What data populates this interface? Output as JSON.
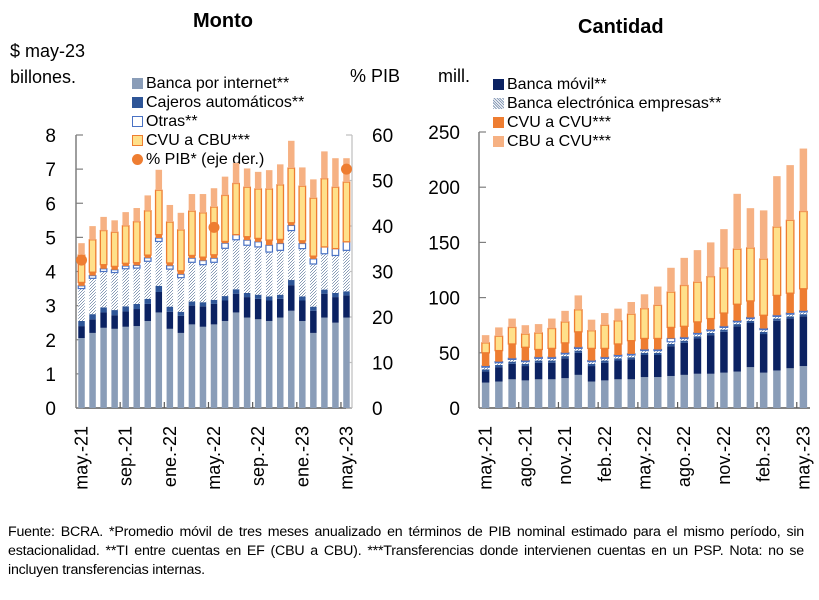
{
  "footnote": "Fuente: BCRA. *Promedio móvil de tres meses anualizado en términos de PIB nominal estimado para el mismo período, sin estacionalidad. **TI entre cuentas en EF (CBU a CBU). ***Transferencias donde intervienen cuentas en un PSP. Nota: no se incluyen transferencias internas.",
  "colors": {
    "banca_internet": "#8a9db8",
    "banca_movil": "#0b2262",
    "cajeros": "#2e5597",
    "banca_electronica": "#b9c2d3",
    "otras": "#ffffff",
    "otras_border": "#4a72c4",
    "cvu_cvu": "#ee7d31",
    "cvu_cbu": "#ffe08a",
    "cvu_cbu_border": "#ee7d31",
    "cbu_cvu": "#f6b183",
    "pib": "#ee7d31"
  },
  "chart_data": [
    {
      "type": "bar",
      "stacked": true,
      "title": "Monto",
      "ylabel": "$ may-23 billones.",
      "ylabel_right": "% PIB",
      "ylim": [
        0,
        8
      ],
      "ylim_right": [
        0,
        60
      ],
      "yticks": [
        "0",
        "1",
        "2",
        "3",
        "4",
        "5",
        "6",
        "7",
        "8"
      ],
      "yticks_right": [
        "0",
        "10",
        "20",
        "30",
        "40",
        "50",
        "60"
      ],
      "x": [
        "may.-21",
        "jun.-21",
        "jul.-21",
        "ago.-21",
        "sep.-21",
        "oct.-21",
        "nov.-21",
        "dic.-21",
        "ene.-22",
        "feb.-22",
        "mar.-22",
        "abr.-22",
        "may.-22",
        "jun.-22",
        "jul.-22",
        "ago.-22",
        "sep.-22",
        "oct.-22",
        "nov.-22",
        "dic.-22",
        "ene.-23",
        "feb.-23",
        "mar.-23",
        "abr.-23",
        "may.-23"
      ],
      "xtick_labels": [
        "may.-21",
        "sep.-21",
        "ene.-22",
        "may.-22",
        "sep.-22",
        "ene.-23",
        "may.-23"
      ],
      "legend": [
        {
          "key": "banca_internet",
          "label": "Banca por internet**",
          "style": "square"
        },
        {
          "key": "cajeros",
          "label": "Cajeros automáticos**",
          "style": "square"
        },
        {
          "key": "otras",
          "label": "Otras**",
          "style": "outline"
        },
        {
          "key": "cvu_cbu",
          "label": "CVU a CBU***",
          "style": "bordered"
        },
        {
          "key": "pib",
          "label": "% PIB* (eje der.)",
          "style": "dot"
        }
      ],
      "series": [
        {
          "name": "Banca por internet**",
          "key": "banca_internet",
          "values": [
            2.05,
            2.2,
            2.35,
            2.32,
            2.38,
            2.4,
            2.55,
            2.8,
            2.32,
            2.2,
            2.45,
            2.38,
            2.45,
            2.55,
            2.8,
            2.65,
            2.6,
            2.55,
            2.65,
            2.85,
            2.55,
            2.2,
            2.65,
            2.5,
            2.65
          ]
        },
        {
          "name": "Banca móvil**",
          "key": "banca_movil",
          "values": [
            0.35,
            0.4,
            0.45,
            0.4,
            0.45,
            0.5,
            0.5,
            0.6,
            0.5,
            0.5,
            0.55,
            0.6,
            0.6,
            0.6,
            0.55,
            0.6,
            0.6,
            0.6,
            0.55,
            0.75,
            0.6,
            0.65,
            0.7,
            0.75,
            0.65
          ]
        },
        {
          "name": "Cajeros automáticos**",
          "key": "cajeros",
          "values": [
            0.15,
            0.15,
            0.15,
            0.15,
            0.15,
            0.15,
            0.15,
            0.18,
            0.15,
            0.12,
            0.12,
            0.12,
            0.12,
            0.13,
            0.13,
            0.12,
            0.12,
            0.12,
            0.12,
            0.15,
            0.12,
            0.12,
            0.12,
            0.12,
            0.12
          ]
        },
        {
          "name": "Banca electrónica empresas**",
          "key": "banca_electronica",
          "values": [
            0.95,
            1.05,
            1.05,
            1.1,
            1.1,
            1.05,
            1.1,
            1.3,
            1.1,
            1.0,
            1.15,
            1.1,
            1.1,
            1.4,
            1.45,
            1.4,
            1.4,
            1.3,
            1.3,
            1.45,
            1.4,
            1.25,
            1.05,
            1.1,
            1.2
          ]
        },
        {
          "name": "Otras**",
          "key": "otras",
          "values": [
            0.08,
            0.08,
            0.08,
            0.08,
            0.08,
            0.08,
            0.1,
            0.1,
            0.1,
            0.1,
            0.12,
            0.12,
            0.12,
            0.15,
            0.15,
            0.15,
            0.15,
            0.2,
            0.2,
            0.15,
            0.15,
            0.15,
            0.2,
            0.2,
            0.25
          ]
        },
        {
          "name": "CVU a CVU***",
          "key": "cvu_cvu",
          "values": [
            0.1,
            0.1,
            0.12,
            0.1,
            0.08,
            0.08,
            0.08,
            0.1,
            0.08,
            0.1,
            0.08,
            0.1,
            0.1,
            0.05,
            0.0,
            0.1,
            0.1,
            0.15,
            0.12,
            0.08,
            0.08,
            0.08,
            0.0,
            0.0,
            0.0
          ]
        },
        {
          "name": "CVU a CBU***",
          "key": "cvu_cbu",
          "values": [
            0.8,
            0.95,
            1.0,
            1.0,
            1.1,
            1.2,
            1.3,
            1.3,
            1.2,
            1.2,
            1.3,
            1.3,
            1.4,
            1.35,
            1.5,
            1.45,
            1.45,
            1.5,
            1.6,
            1.6,
            1.6,
            1.7,
            2.0,
            1.8,
            1.75
          ]
        },
        {
          "name": "CBU a CVU***",
          "key": "cbu_cvu",
          "values": [
            0.35,
            0.4,
            0.4,
            0.35,
            0.4,
            0.4,
            0.45,
            0.6,
            0.5,
            0.5,
            0.5,
            0.55,
            0.55,
            0.55,
            0.6,
            0.55,
            0.5,
            0.55,
            0.6,
            0.8,
            0.55,
            0.55,
            0.8,
            0.85,
            0.7
          ]
        }
      ],
      "pib_points": [
        {
          "x": "may.-21",
          "value": 32.5
        },
        {
          "x": "may.-22",
          "value": 39.7
        },
        {
          "x": "may.-23",
          "value": 52.5
        }
      ]
    },
    {
      "type": "bar",
      "stacked": true,
      "title": "Cantidad",
      "ylabel": "mill.",
      "ylim": [
        0,
        250
      ],
      "yticks": [
        "0",
        "50",
        "100",
        "150",
        "200",
        "250"
      ],
      "x": [
        "may.-21",
        "jun.-21",
        "jul.-21",
        "ago.-21",
        "sep.-21",
        "oct.-21",
        "nov.-21",
        "dic.-21",
        "ene.-22",
        "feb.-22",
        "mar.-22",
        "abr.-22",
        "may.-22",
        "jun.-22",
        "jul.-22",
        "ago.-22",
        "sep.-22",
        "oct.-22",
        "nov.-22",
        "dic.-22",
        "ene.-23",
        "feb.-23",
        "mar.-23",
        "abr.-23",
        "may.-23"
      ],
      "xtick_labels": [
        "may.-21",
        "ago.-21",
        "nov.-21",
        "feb.-22",
        "may.-22",
        "ago.-22",
        "nov.-22",
        "feb.-23",
        "may.-23"
      ],
      "legend": [
        {
          "key": "banca_movil",
          "label": "Banca móvil**",
          "style": "square"
        },
        {
          "key": "banca_electronica",
          "label": "Banca electrónica empresas**",
          "style": "hatch"
        },
        {
          "key": "cvu_cvu",
          "label": "CVU a CVU***",
          "style": "square"
        },
        {
          "key": "cbu_cvu",
          "label": "CBU a CVU***",
          "style": "square"
        }
      ],
      "series": [
        {
          "name": "Banca por internet**",
          "key": "banca_internet",
          "values": [
            23,
            24,
            26,
            25,
            26,
            26,
            27,
            30,
            24,
            25,
            26,
            26,
            28,
            28,
            29,
            30,
            31,
            31,
            32,
            33,
            37,
            32,
            34,
            36,
            38
          ]
        },
        {
          "name": "Banca móvil**",
          "key": "banca_movil",
          "values": [
            10,
            13,
            14,
            13,
            15,
            15,
            18,
            20,
            14,
            16,
            17,
            18,
            20,
            20,
            27,
            29,
            32,
            35,
            37,
            41,
            40,
            35,
            45,
            45,
            45
          ]
        },
        {
          "name": "Cajeros automáticos**",
          "key": "cajeros",
          "values": [
            2,
            2,
            2,
            2,
            2,
            2,
            2,
            2,
            2,
            2,
            2,
            2,
            2,
            2,
            2,
            2,
            2,
            2,
            2,
            2,
            2,
            2,
            2,
            2,
            2
          ]
        },
        {
          "name": "Banca electrónica empresas**",
          "key": "banca_electronica",
          "values": [
            2,
            2,
            2,
            2,
            2,
            2,
            2,
            2,
            2,
            2,
            2,
            2,
            2,
            2,
            2,
            2,
            2,
            2,
            2,
            2,
            2,
            2,
            2,
            2,
            2
          ]
        },
        {
          "name": "Otras**",
          "key": "otras",
          "values": [
            1,
            1,
            1,
            1,
            1,
            1,
            1,
            1,
            1,
            1,
            1,
            1,
            1,
            1,
            3,
            1,
            1,
            1,
            1,
            1,
            1,
            1,
            1,
            1,
            1
          ]
        },
        {
          "name": "CVU a CVU***",
          "key": "cvu_cvu",
          "values": [
            12,
            10,
            13,
            12,
            7,
            8,
            9,
            14,
            11,
            8,
            10,
            12,
            10,
            10,
            10,
            10,
            10,
            10,
            12,
            15,
            15,
            12,
            18,
            18,
            20
          ]
        },
        {
          "name": "CVU a CBU***",
          "key": "cvu_cbu",
          "values": [
            9,
            13,
            15,
            12,
            15,
            18,
            19,
            20,
            16,
            21,
            21,
            24,
            27,
            30,
            32,
            37,
            36,
            38,
            41,
            50,
            48,
            51,
            62,
            66,
            70
          ]
        },
        {
          "name": "CBU a CVU***",
          "key": "cbu_cvu",
          "values": [
            7,
            8,
            8,
            8,
            8,
            9,
            10,
            13,
            10,
            11,
            11,
            11,
            13,
            17,
            22,
            25,
            29,
            31,
            35,
            50,
            36,
            44,
            46,
            50,
            57
          ]
        }
      ]
    }
  ]
}
